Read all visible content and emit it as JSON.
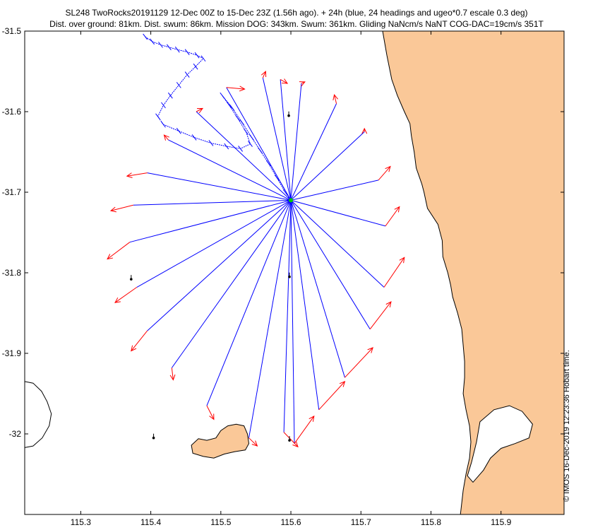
{
  "header": {
    "line1": "SL248 TwoRocks20191129 12-Dec 00Z to 15-Dec 23Z (1.56h ago). + 24h (blue, 24 headings and ugeo*0.7 escale 0.3 deg)",
    "line2": "Dist. over ground: 81km. Dist. swum: 86km. Mission DOG: 343km. Swum: 361km. Gliding NaNcm/s NaNT COG-DAC=19cm/s 351T"
  },
  "side_note": "© IMOS 16-Dec-2019 12:23:36 Hobart time.",
  "chart_data": {
    "type": "map",
    "xlim": [
      115.22,
      115.99
    ],
    "ylim": [
      -32.1,
      -31.5
    ],
    "xticks": [
      "115.3",
      "115.4",
      "115.5",
      "115.6",
      "115.7",
      "115.8",
      "115.9"
    ],
    "xtick_values": [
      115.3,
      115.4,
      115.5,
      115.6,
      115.7,
      115.8,
      115.9
    ],
    "yticks": [
      "-31.5",
      "-31.6",
      "-31.7",
      "-31.8",
      "-31.9",
      "-32"
    ],
    "ytick_values": [
      -31.5,
      -31.6,
      -31.7,
      -31.8,
      -31.9,
      -32.0
    ],
    "land_color": "#fac898",
    "projection_color": "#0000ff",
    "arrow_color": "#ff0000",
    "current_position_color": "#00cc00",
    "glider_position": [
      115.6,
      -31.71
    ],
    "projection_endpoints": [
      [
        115.615,
        -31.565
      ],
      [
        115.665,
        -31.59
      ],
      [
        115.705,
        -31.625
      ],
      [
        115.725,
        -31.685
      ],
      [
        115.735,
        -31.742
      ],
      [
        115.733,
        -31.818
      ],
      [
        115.713,
        -31.87
      ],
      [
        115.677,
        -31.93
      ],
      [
        115.64,
        -31.97
      ],
      [
        115.605,
        -32.012
      ],
      [
        115.59,
        -31.998
      ],
      [
        115.54,
        -32.005
      ],
      [
        115.48,
        -31.965
      ],
      [
        115.43,
        -31.918
      ],
      [
        115.395,
        -31.872
      ],
      [
        115.38,
        -31.818
      ],
      [
        115.37,
        -31.762
      ],
      [
        115.375,
        -31.716
      ],
      [
        115.395,
        -31.676
      ],
      [
        115.425,
        -31.635
      ],
      [
        115.465,
        -31.6
      ],
      [
        115.508,
        -31.57
      ],
      [
        115.56,
        -31.558
      ],
      [
        115.585,
        -31.56
      ]
    ],
    "arrow_tips": [
      [
        115.62,
        -31.563
      ],
      [
        115.662,
        -31.579
      ],
      [
        115.705,
        -31.621
      ],
      [
        115.742,
        -31.668
      ],
      [
        115.755,
        -31.718
      ],
      [
        115.762,
        -31.781
      ],
      [
        115.743,
        -31.836
      ],
      [
        115.717,
        -31.893
      ],
      [
        115.677,
        -31.935
      ],
      [
        115.633,
        -31.978
      ],
      [
        115.61,
        -32.016
      ],
      [
        115.552,
        -32.015
      ],
      [
        115.49,
        -31.982
      ],
      [
        115.432,
        -31.933
      ],
      [
        115.372,
        -31.897
      ],
      [
        115.349,
        -31.837
      ],
      [
        115.338,
        -31.783
      ],
      [
        115.343,
        -31.723
      ],
      [
        115.366,
        -31.68
      ],
      [
        115.419,
        -31.629
      ],
      [
        115.474,
        -31.596
      ],
      [
        115.534,
        -31.572
      ],
      [
        115.564,
        -31.55
      ],
      [
        115.595,
        -31.565
      ]
    ],
    "past_track": [
      [
        115.392,
        -31.507
      ],
      [
        115.402,
        -31.513
      ],
      [
        115.414,
        -31.517
      ],
      [
        115.426,
        -31.52
      ],
      [
        115.438,
        -31.523
      ],
      [
        115.452,
        -31.526
      ],
      [
        115.466,
        -31.53
      ],
      [
        115.475,
        -31.534
      ],
      [
        115.464,
        -31.544
      ],
      [
        115.452,
        -31.554
      ],
      [
        115.44,
        -31.567
      ],
      [
        115.428,
        -31.58
      ],
      [
        115.418,
        -31.592
      ],
      [
        115.41,
        -31.606
      ],
      [
        115.418,
        -31.616
      ],
      [
        115.44,
        -31.624
      ],
      [
        115.462,
        -31.632
      ],
      [
        115.486,
        -31.639
      ],
      [
        115.508,
        -31.643
      ],
      [
        115.528,
        -31.646
      ],
      [
        115.542,
        -31.64
      ],
      [
        115.536,
        -31.625
      ],
      [
        115.524,
        -31.608
      ],
      [
        115.512,
        -31.592
      ],
      [
        115.502,
        -31.58
      ],
      [
        115.516,
        -31.595
      ],
      [
        115.53,
        -31.613
      ],
      [
        115.544,
        -31.632
      ],
      [
        115.556,
        -31.648
      ],
      [
        115.568,
        -31.664
      ],
      [
        115.58,
        -31.682
      ],
      [
        115.592,
        -31.7
      ],
      [
        115.6,
        -31.71
      ]
    ],
    "waypoint_markers": [
      [
        115.597,
        -31.605
      ],
      [
        115.372,
        -31.808
      ],
      [
        115.598,
        -31.805
      ],
      [
        115.404,
        -32.005
      ],
      [
        115.598,
        -32.008
      ]
    ],
    "coastline": [
      [
        115.731,
        -31.5
      ],
      [
        115.737,
        -31.53
      ],
      [
        115.744,
        -31.56
      ],
      [
        115.752,
        -31.58
      ],
      [
        115.762,
        -31.6
      ],
      [
        115.77,
        -31.615
      ],
      [
        115.772,
        -31.63
      ],
      [
        115.776,
        -31.65
      ],
      [
        115.779,
        -31.67
      ],
      [
        115.787,
        -31.69
      ],
      [
        115.79,
        -31.7
      ],
      [
        115.795,
        -31.72
      ],
      [
        115.81,
        -31.74
      ],
      [
        115.816,
        -31.76
      ],
      [
        115.817,
        -31.78
      ],
      [
        115.824,
        -31.8
      ],
      [
        115.828,
        -31.815
      ],
      [
        115.831,
        -31.83
      ],
      [
        115.838,
        -31.85
      ],
      [
        115.844,
        -31.87
      ],
      [
        115.846,
        -31.89
      ],
      [
        115.848,
        -31.91
      ],
      [
        115.848,
        -31.93
      ],
      [
        115.846,
        -31.95
      ],
      [
        115.85,
        -31.97
      ],
      [
        115.855,
        -31.99
      ],
      [
        115.857,
        -32.01
      ],
      [
        115.855,
        -32.03
      ],
      [
        115.85,
        -32.05
      ],
      [
        115.846,
        -32.07
      ],
      [
        115.842,
        -32.1
      ]
    ],
    "island_rottnest": [
      [
        115.493,
        -32.005
      ],
      [
        115.5,
        -31.996
      ],
      [
        115.51,
        -31.99
      ],
      [
        115.522,
        -31.988
      ],
      [
        115.533,
        -31.99
      ],
      [
        115.538,
        -32.0
      ],
      [
        115.54,
        -32.012
      ],
      [
        115.535,
        -32.02
      ],
      [
        115.52,
        -32.022
      ],
      [
        115.505,
        -32.025
      ],
      [
        115.49,
        -32.03
      ],
      [
        115.475,
        -32.028
      ],
      [
        115.46,
        -32.024
      ],
      [
        115.458,
        -32.014
      ],
      [
        115.468,
        -32.006
      ],
      [
        115.48,
        -32.008
      ]
    ],
    "land_left": [
      [
        115.22,
        -31.935
      ],
      [
        115.232,
        -31.937
      ],
      [
        115.244,
        -31.947
      ],
      [
        115.252,
        -31.96
      ],
      [
        115.258,
        -31.975
      ],
      [
        115.255,
        -31.99
      ],
      [
        115.245,
        -32.005
      ],
      [
        115.232,
        -32.015
      ],
      [
        115.22,
        -32.017
      ]
    ],
    "estuary": [
      [
        115.87,
        -31.985
      ],
      [
        115.89,
        -31.97
      ],
      [
        115.912,
        -31.965
      ],
      [
        115.93,
        -31.972
      ],
      [
        115.945,
        -31.988
      ],
      [
        115.94,
        -32.005
      ],
      [
        115.92,
        -32.012
      ],
      [
        115.9,
        -32.018
      ],
      [
        115.885,
        -32.03
      ],
      [
        115.875,
        -32.045
      ],
      [
        115.86,
        -32.06
      ],
      [
        115.852,
        -32.052
      ],
      [
        115.858,
        -32.035
      ],
      [
        115.865,
        -32.01
      ]
    ]
  }
}
